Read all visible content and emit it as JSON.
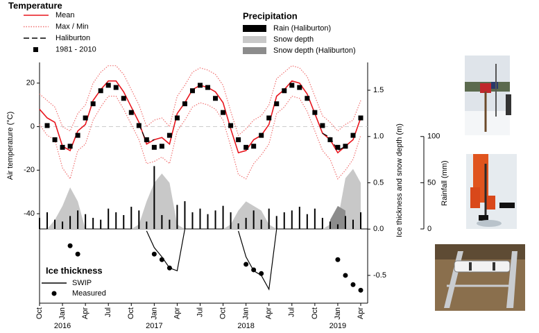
{
  "chart_data": {
    "type": "line",
    "x": [
      "2015-10",
      "2015-11",
      "2015-12",
      "2016-01",
      "2016-02",
      "2016-03",
      "2016-04",
      "2016-05",
      "2016-06",
      "2016-07",
      "2016-08",
      "2016-09",
      "2016-10",
      "2016-11",
      "2016-12",
      "2017-01",
      "2017-02",
      "2017-03",
      "2017-04",
      "2017-05",
      "2017-06",
      "2017-07",
      "2017-08",
      "2017-09",
      "2017-10",
      "2017-11",
      "2017-12",
      "2018-01",
      "2018-02",
      "2018-03",
      "2018-04",
      "2018-05",
      "2018-06",
      "2018-07",
      "2018-08",
      "2018-09",
      "2018-10",
      "2018-11",
      "2018-12",
      "2019-01",
      "2019-02",
      "2019-03",
      "2019-04"
    ],
    "xlim": [
      "2015-10",
      "2019-04"
    ],
    "xticks": [
      {
        "value": "2015-10",
        "label": "Oct"
      },
      {
        "value": "2016-01",
        "label": "Jan"
      },
      {
        "value": "2016-04",
        "label": "Apr"
      },
      {
        "value": "2016-07",
        "label": "Jul"
      },
      {
        "value": "2016-10",
        "label": "Oct"
      },
      {
        "value": "2017-01",
        "label": "Jan"
      },
      {
        "value": "2017-04",
        "label": "Apr"
      },
      {
        "value": "2017-07",
        "label": "Jul"
      },
      {
        "value": "2017-10",
        "label": "Oct"
      },
      {
        "value": "2018-01",
        "label": "Jan"
      },
      {
        "value": "2018-04",
        "label": "Apr"
      },
      {
        "value": "2018-07",
        "label": "Jul"
      },
      {
        "value": "2018-10",
        "label": "Oct"
      },
      {
        "value": "2019-01",
        "label": "Jan"
      },
      {
        "value": "2019-04",
        "label": "Apr"
      }
    ],
    "year_labels": [
      {
        "value": "2016-01",
        "label": "2016"
      },
      {
        "value": "2017-01",
        "label": "2017"
      },
      {
        "value": "2018-01",
        "label": "2018"
      },
      {
        "value": "2019-01",
        "label": "2019"
      }
    ],
    "ylabel": "Air temperature (°C)",
    "ylim": [
      -47,
      29.5
    ],
    "yticks": [
      -40,
      -20,
      0,
      20
    ],
    "zero_line": true,
    "y2label": "Ice thickness and snow depth (m)",
    "y2lim": [
      -0.8,
      1.8
    ],
    "y2ticks": [
      -0.5,
      {
        "value": 0,
        "label": "0.0"
      },
      0.5,
      {
        "value": 1,
        "label": "1.0"
      },
      1.5
    ],
    "rain_axis": {
      "label": "Rainfall (mm)",
      "lim": [
        0,
        100
      ],
      "ticks": [
        0,
        50,
        100
      ]
    },
    "temperature": {
      "title": "Temperature",
      "series": [
        {
          "name": "Mean",
          "color": "#e8141c",
          "kind": "line",
          "axis": "y",
          "values": [
            8,
            4,
            2,
            -9,
            -11,
            -2,
            1,
            12,
            17,
            21,
            21,
            16,
            9,
            2,
            -8,
            -6,
            -5,
            -8,
            6,
            11,
            17,
            19,
            18,
            16,
            11,
            -1,
            -12,
            -11,
            -6,
            -4,
            1,
            14,
            17,
            21,
            20,
            15,
            6,
            -3,
            -6,
            -12,
            -9,
            -6,
            4
          ]
        },
        {
          "name": "Max / Min",
          "color": "#f07070",
          "kind": "dotted",
          "axis": "y",
          "values": [
            15,
            12,
            9,
            0,
            -2,
            6,
            10,
            20,
            25,
            28,
            28,
            24,
            17,
            10,
            0,
            3,
            4,
            0,
            14,
            19,
            25,
            27,
            26,
            24,
            19,
            7,
            -4,
            -1,
            3,
            5,
            10,
            22,
            25,
            28,
            27,
            23,
            14,
            5,
            2,
            -2,
            1,
            3,
            12
          ]
        },
        {
          "color": "#f07070",
          "kind": "dotted",
          "axis": "y",
          "values": [
            1,
            -4,
            -6,
            -19,
            -24,
            -11,
            -8,
            3,
            9,
            14,
            14,
            8,
            1,
            -6,
            -17,
            -16,
            -14,
            -17,
            -2,
            3,
            9,
            11,
            10,
            8,
            3,
            -9,
            -22,
            -24,
            -17,
            -13,
            -8,
            6,
            9,
            14,
            13,
            7,
            -2,
            -11,
            -15,
            -24,
            -20,
            -15,
            -4
          ]
        },
        {
          "name": "Haliburton",
          "color": "#000000",
          "kind": "dashed",
          "axis": "y",
          "values": [
            null,
            null,
            null,
            null,
            null,
            null,
            null,
            null,
            null,
            null,
            null,
            null,
            null,
            1,
            -7,
            -6,
            null,
            null,
            null,
            null,
            null,
            null,
            null,
            null,
            null,
            null,
            null,
            null,
            null,
            null,
            null,
            null,
            null,
            null,
            null,
            null,
            null,
            -3,
            -5,
            -11,
            -9,
            null,
            null
          ]
        },
        {
          "name": "1981 - 2010",
          "color": "#000000",
          "kind": "square",
          "axis": "y",
          "values": [
            null,
            0.5,
            -6,
            -9.5,
            -9,
            -4,
            4,
            10.5,
            16.5,
            19,
            18,
            13,
            6.5,
            0.5,
            -6,
            -9.5,
            -9,
            -4,
            4,
            10.5,
            16.5,
            19,
            18,
            13,
            6.5,
            0.5,
            -6,
            -9.5,
            -9,
            -4,
            4,
            10.5,
            16.5,
            19,
            18,
            13,
            6.5,
            0.5,
            -6,
            -9.5,
            -9,
            -4,
            4
          ]
        }
      ]
    },
    "precipitation": {
      "title": "Precipitation",
      "series": [
        {
          "name": "Rain  (Haliburton)",
          "color": "#000000",
          "kind": "bar",
          "axis": "rain",
          "values": [
            12,
            18,
            10,
            8,
            14,
            20,
            16,
            12,
            10,
            22,
            18,
            15,
            24,
            20,
            8,
            68,
            15,
            10,
            26,
            30,
            18,
            22,
            16,
            20,
            25,
            18,
            6,
            12,
            20,
            10,
            22,
            14,
            18,
            20,
            24,
            16,
            22,
            12,
            8,
            5,
            14,
            10,
            18
          ]
        },
        {
          "name": "Snow depth",
          "color": "#c8c8c8",
          "kind": "area",
          "axis": "y2",
          "values": [
            0,
            0,
            0.1,
            0.25,
            0.45,
            0.3,
            0,
            0,
            0,
            0,
            0,
            0,
            0,
            0.05,
            0.3,
            0.5,
            0.6,
            0.5,
            0.05,
            0,
            0,
            0,
            0,
            0,
            0,
            0.05,
            0.2,
            0.3,
            0.25,
            0.2,
            0.05,
            0,
            0,
            0,
            0,
            0,
            0,
            0,
            0.05,
            0.1,
            0.55,
            0.65,
            0.5
          ]
        },
        {
          "name": "Snow depth (Haliburton)",
          "color": "#8c8c8c",
          "kind": "area",
          "axis": "y2",
          "values": [
            null,
            null,
            null,
            null,
            null,
            null,
            null,
            null,
            null,
            null,
            null,
            null,
            null,
            null,
            null,
            null,
            null,
            null,
            null,
            null,
            null,
            null,
            null,
            null,
            null,
            null,
            null,
            null,
            null,
            null,
            null,
            null,
            null,
            null,
            null,
            null,
            null,
            null,
            0.1,
            0.25,
            0.2,
            null,
            null
          ]
        }
      ]
    },
    "ice_thickness": {
      "title": "Ice thickness",
      "series": [
        {
          "name": "SWIP",
          "color": "#000000",
          "kind": "line",
          "axis": "y2",
          "values": [
            null,
            null,
            null,
            null,
            null,
            null,
            null,
            null,
            null,
            null,
            null,
            null,
            null,
            null,
            -0.02,
            -0.2,
            -0.3,
            -0.42,
            -0.45,
            0,
            null,
            null,
            null,
            null,
            null,
            null,
            -0.02,
            -0.3,
            -0.45,
            -0.5,
            -0.65,
            0,
            null,
            null,
            null,
            null,
            null,
            null,
            null,
            null,
            null,
            null,
            null
          ]
        },
        {
          "name": "Measured",
          "color": "#000000",
          "kind": "dot",
          "axis": "y2",
          "values": [
            null,
            null,
            null,
            null,
            -0.18,
            -0.27,
            null,
            null,
            null,
            null,
            null,
            null,
            null,
            null,
            null,
            -0.27,
            -0.33,
            -0.42,
            null,
            null,
            null,
            null,
            null,
            null,
            null,
            null,
            null,
            -0.38,
            -0.44,
            -0.48,
            null,
            null,
            null,
            null,
            null,
            null,
            null,
            null,
            null,
            -0.33,
            -0.5,
            -0.6,
            -0.66
          ]
        }
      ]
    }
  }
}
